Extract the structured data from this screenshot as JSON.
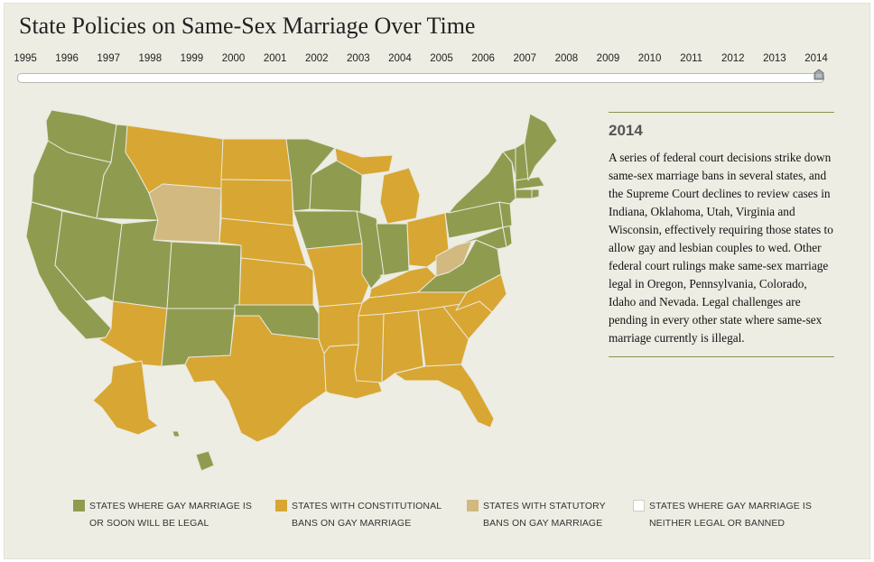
{
  "title": "State Policies on Same-Sex Marriage Over Time",
  "timeline": {
    "years": [
      "1995",
      "1996",
      "1997",
      "1998",
      "1999",
      "2000",
      "2001",
      "2002",
      "2003",
      "2004",
      "2005",
      "2006",
      "2007",
      "2008",
      "2009",
      "2010",
      "2011",
      "2012",
      "2013",
      "2014"
    ],
    "selected": "2014"
  },
  "panel": {
    "year": "2014",
    "text": "A series of federal court decisions strike down same-sex marriage bans in several states, and the Supreme Court declines to review cases in Indiana, Oklahoma, Utah, Virginia and Wisconsin, effectively requiring those states to allow gay and lesbian couples to wed. Other federal court rulings make same-sex marriage legal in Oregon, Pennsylvania, Colorado, Idaho and Nevada. Legal challenges are pending in every other state where same-sex marriage currently is illegal."
  },
  "colors": {
    "legal": "#8f9c50",
    "constitutional_ban": "#d8a632",
    "statutory_ban": "#d1b97f",
    "neither": "#ffffff"
  },
  "legend": [
    {
      "key": "legal",
      "line1": "STATES WHERE GAY MARRIAGE IS",
      "line2": "OR SOON WILL BE LEGAL"
    },
    {
      "key": "constitutional_ban",
      "line1": "STATES WITH CONSTITUTIONAL",
      "line2": "BANS ON GAY MARRIAGE"
    },
    {
      "key": "statutory_ban",
      "line1": "STATES WITH STATUTORY",
      "line2": "BANS ON GAY MARRIAGE"
    },
    {
      "key": "neither",
      "line1": "STATES WHERE GAY MARRIAGE IS",
      "line2": "NEITHER LEGAL OR BANNED"
    }
  ],
  "map": {
    "states_by_status": {
      "legal": [
        "Washington",
        "Oregon",
        "California",
        "Nevada",
        "Idaho",
        "Utah",
        "Colorado",
        "New Mexico",
        "Oklahoma",
        "Minnesota",
        "Iowa",
        "Wisconsin",
        "Illinois",
        "Indiana",
        "Pennsylvania",
        "Virginia",
        "Maryland",
        "Delaware",
        "New Jersey",
        "New York",
        "Connecticut",
        "Rhode Island",
        "Massachusetts",
        "Vermont",
        "New Hampshire",
        "Maine",
        "Hawaii"
      ],
      "constitutional_ban": [
        "Montana",
        "North Dakota",
        "South Dakota",
        "Nebraska",
        "Kansas",
        "Missouri",
        "Arkansas",
        "Louisiana",
        "Texas",
        "Arizona",
        "Michigan",
        "Ohio",
        "Kentucky",
        "Tennessee",
        "Mississippi",
        "Alabama",
        "Georgia",
        "Florida",
        "South Carolina",
        "North Carolina",
        "Alaska"
      ],
      "statutory_ban": [
        "Wyoming",
        "West Virginia"
      ],
      "neither": []
    }
  }
}
